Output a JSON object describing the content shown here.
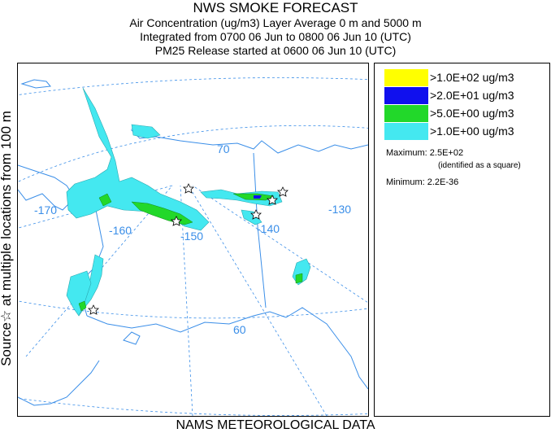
{
  "title": "NWS SMOKE FORECAST",
  "subtitle_lines": [
    "Air Concentration (ug/m3) Layer Average    0 m and  5000 m",
    "Integrated from 0700 06 Jun to 0800 06 Jun 10 (UTC)",
    "PM25 Release started at 0600 06 Jun 10 (UTC)"
  ],
  "side_label": "Source☆ at multiple locations  from  100 m",
  "footer": "NAMS METEOROLOGICAL DATA",
  "map": {
    "longitude_labels": [
      "-170",
      "-160",
      "-150",
      "-140",
      "-130"
    ],
    "latitude_labels": [
      "70",
      "60"
    ],
    "colors": {
      "land": "#ffffff",
      "coast": "#3a8ee8",
      "grid": "#3a8ee8",
      "plume_low": "#44e8f0",
      "plume_mid": "#22d82a",
      "plume_high": "#1010ee",
      "plume_top": "#ffff00"
    }
  },
  "legend": {
    "items": [
      {
        "label": ">1.0E+02 ug/m3",
        "color": "#ffff00"
      },
      {
        "label": ">2.0E+01 ug/m3",
        "color": "#1010ee"
      },
      {
        "label": ">5.0E+00 ug/m3",
        "color": "#22d82a"
      },
      {
        "label": ">1.0E+00 ug/m3",
        "color": "#44e8f0"
      }
    ],
    "maximum_label": "Maximum: 2.5E+02",
    "maximum_note": "(identified as a square)",
    "minimum_label": "Minimum: 2.2E-36"
  }
}
